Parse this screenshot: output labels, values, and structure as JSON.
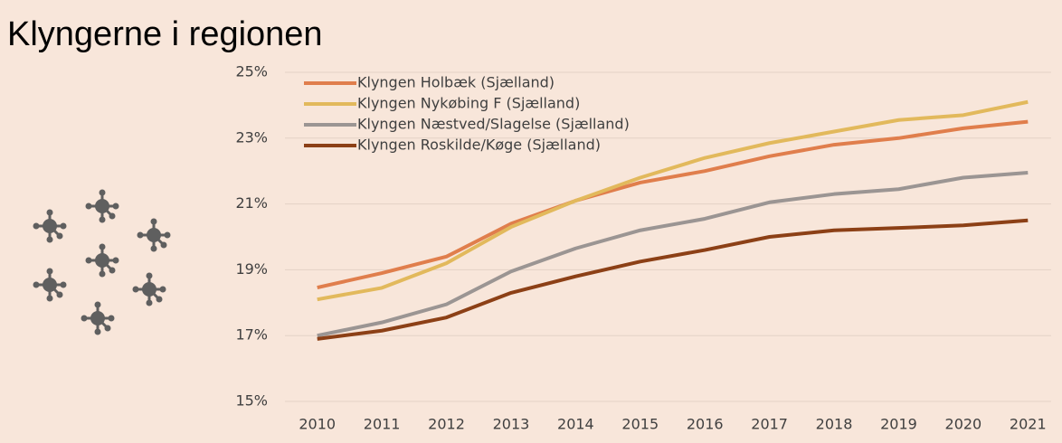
{
  "chart_data": {
    "type": "line",
    "title": "Klyngerne i regionen",
    "categories": [
      "2010",
      "2011",
      "2012",
      "2013",
      "2014",
      "2015",
      "2016",
      "2017",
      "2018",
      "2019",
      "2020",
      "2021"
    ],
    "series": [
      {
        "name": "Klyngen Holbæk (Sjælland)",
        "color": "#e07e4c",
        "values": [
          18.46,
          18.9,
          19.4,
          20.4,
          21.1,
          21.65,
          22.0,
          22.45,
          22.8,
          23.0,
          23.3,
          23.5
        ]
      },
      {
        "name": "Klyngen Nykøbing F (Sjælland)",
        "color": "#e2b95c",
        "values": [
          18.1,
          18.45,
          19.2,
          20.3,
          21.1,
          21.8,
          22.4,
          22.85,
          23.2,
          23.55,
          23.7,
          24.1
        ]
      },
      {
        "name": "Klyngen Næstved/Slagelse (Sjælland)",
        "color": "#9b9593",
        "values": [
          17.0,
          17.4,
          17.95,
          18.95,
          19.65,
          20.2,
          20.55,
          21.05,
          21.3,
          21.45,
          21.8,
          21.95
        ]
      },
      {
        "name": "Klyngen Roskilde/Køge (Sjælland)",
        "color": "#8c4016",
        "values": [
          16.9,
          17.15,
          17.55,
          18.3,
          18.8,
          19.25,
          19.6,
          20.0,
          20.2,
          20.27,
          20.35,
          20.5
        ]
      }
    ],
    "ylim": [
      15,
      25
    ],
    "yticks": [
      {
        "value": 15,
        "label": "15%"
      },
      {
        "value": 17,
        "label": "17%"
      },
      {
        "value": 19,
        "label": "19%"
      },
      {
        "value": 21,
        "label": "21%"
      },
      {
        "value": 23,
        "label": "23%"
      },
      {
        "value": 25,
        "label": "25%"
      }
    ],
    "grid": true,
    "legend": "top-left"
  }
}
